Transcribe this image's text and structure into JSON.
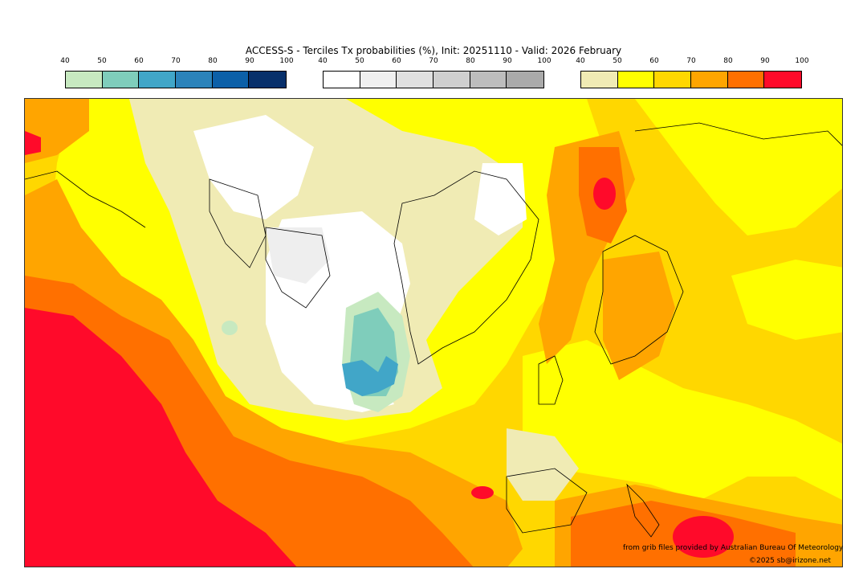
{
  "title": "ACCESS-S - Terciles Tx probabilities (%), Init: 20251110 - Valid: 2026 February",
  "legends": [
    {
      "ticks": [
        "40",
        "50",
        "60",
        "70",
        "80",
        "90",
        "100"
      ],
      "colors": [
        "#c7e9c0",
        "#7fcdbb",
        "#41a6c8",
        "#2b83ba",
        "#0c60a8",
        "#08306b"
      ]
    },
    {
      "ticks": [
        "40",
        "50",
        "60",
        "70",
        "80",
        "90",
        "100"
      ],
      "colors": [
        "#ffffff",
        "#f0f0f0",
        "#e0e0e0",
        "#cfcfcf",
        "#bdbdbd",
        "#aaaaaa"
      ]
    },
    {
      "ticks": [
        "40",
        "50",
        "60",
        "70",
        "80",
        "90",
        "100"
      ],
      "colors": [
        "#f0ebb4",
        "#ffff00",
        "#ffd700",
        "#ffa500",
        "#ff7000",
        "#ff0a2a"
      ]
    }
  ],
  "map_colors": {
    "pale_yellow": "#f0ebb4",
    "yellow": "#ffff00",
    "gold": "#ffd700",
    "orange": "#ffa500",
    "dark_orange": "#ff7000",
    "red": "#ff0a2a",
    "white": "#ffffff",
    "light_gray": "#eeeeee",
    "light_green": "#c7e9c0",
    "teal": "#7fcdbb",
    "blue": "#41a6c8"
  },
  "credit_line1": "from grib files provided by Australian Bureau Of Meteorology",
  "credit_line2": "©2025 sb@irizone.net"
}
